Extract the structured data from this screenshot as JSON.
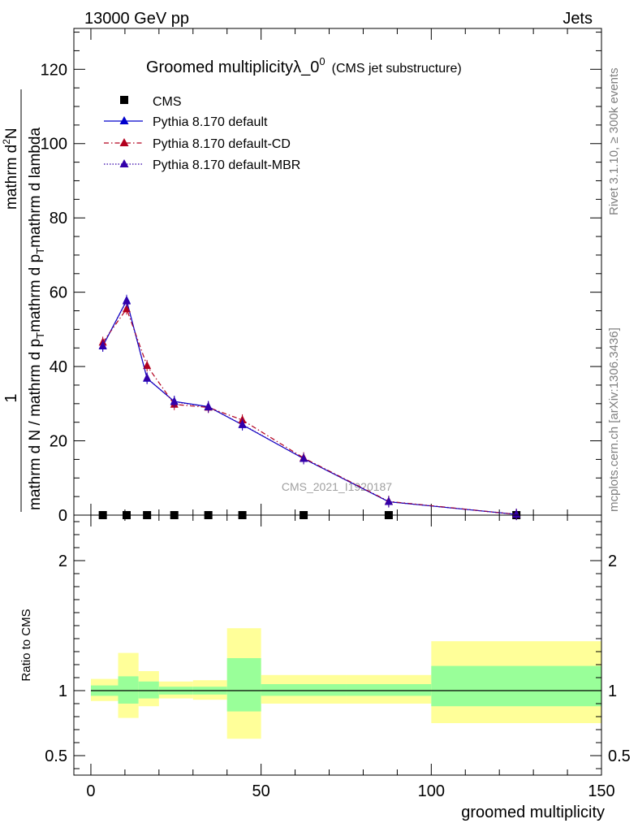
{
  "header": {
    "left": "13000 GeV pp",
    "right": "Jets"
  },
  "side_text": {
    "rivet": "Rivet 3.1.10, ≥ 300k events",
    "mcplots": "mcplots.cern.ch [arXiv:1306.3436]"
  },
  "watermark": "CMS_2021_I1920187",
  "chart_data": [
    {
      "type": "line",
      "title": "Groomed multiplicityλ_0⁰",
      "subtitle": "(CMS jet substructure)",
      "title_main": "Groomed multiplicityλ_0",
      "title_sup": "0",
      "ylabel_parts": [
        "1",
        "mathrm d N / mathrm d p_T mathrm d p_T mathrm d lambda",
        "mathrm d²N"
      ],
      "ylabel_1": "1",
      "ylabel_2": "mathrm d N / mathrm d p",
      "ylabel_2b": "mathrm d p",
      "ylabel_2c": "T",
      "ylabel_2d": "mathrm d p",
      "ylabel_2e": "T",
      "ylabel_2f": "mathrm d lambda",
      "ylabel_num": "mathrm d",
      "ylabel_num_sup": "2",
      "ylabel_num_end": "N",
      "xlim": [
        -5,
        150
      ],
      "ylim": [
        0,
        131
      ],
      "y_ticks": [
        0,
        20,
        40,
        60,
        80,
        100,
        120
      ],
      "y_tick_labels": [
        "0",
        "20",
        "40",
        "60",
        "80",
        "100",
        "120"
      ],
      "legend": {
        "position": "top-left",
        "entries": [
          "CMS",
          "Pythia 8.170 default",
          "Pythia 8.170 default-CD",
          "Pythia 8.170 default-MBR"
        ]
      },
      "x": [
        3.5,
        10.5,
        16.5,
        24.5,
        34.5,
        44.5,
        62.5,
        87.5,
        125
      ],
      "series": [
        {
          "name": "CMS",
          "color": "#000000",
          "marker": "square",
          "values": [
            0,
            0,
            0,
            0,
            0,
            0,
            0,
            0,
            0
          ]
        },
        {
          "name": "Pythia 8.170 default",
          "color": "#0000cc",
          "style": "solid",
          "marker": "triangle",
          "values": [
            45.5,
            57.8,
            36.8,
            30.6,
            29.2,
            24.3,
            15.2,
            3.6,
            0.2
          ]
        },
        {
          "name": "Pythia 8.170 default-CD",
          "color": "#b2001e",
          "style": "dashdot",
          "marker": "triangle",
          "values": [
            46.5,
            55.5,
            40.2,
            29.8,
            29.0,
            25.6,
            15.4,
            3.7,
            0.2
          ]
        },
        {
          "name": "Pythia 8.170 default-MBR",
          "color": "#3300aa",
          "style": "dotted",
          "marker": "triangle",
          "values": [
            45.6,
            57.6,
            36.9,
            30.5,
            29.1,
            24.4,
            15.2,
            3.6,
            0.2
          ]
        }
      ]
    },
    {
      "type": "area",
      "ylabel": "Ratio to CMS",
      "xlabel": "groomed multiplicity",
      "xlim": [
        -5,
        150
      ],
      "ylim": [
        0.35,
        2.35
      ],
      "x_ticks": [
        0,
        50,
        100,
        150
      ],
      "x_tick_labels": [
        "0",
        "50",
        "100",
        "150"
      ],
      "y_ticks": [
        0.5,
        1,
        2
      ],
      "y_tick_labels": [
        "0.5",
        "1",
        "2"
      ],
      "reference_line": 1,
      "bins": [
        [
          0,
          8
        ],
        [
          8,
          14
        ],
        [
          14,
          20
        ],
        [
          20,
          30
        ],
        [
          30,
          40
        ],
        [
          40,
          50
        ],
        [
          50,
          75
        ],
        [
          75,
          100
        ],
        [
          100,
          150
        ]
      ],
      "stat_band": [
        [
          0.96,
          1.04
        ],
        [
          0.9,
          1.11
        ],
        [
          0.94,
          1.07
        ],
        [
          0.97,
          1.03
        ],
        [
          0.97,
          1.03
        ],
        [
          0.84,
          1.25
        ],
        [
          0.96,
          1.05
        ],
        [
          0.96,
          1.05
        ],
        [
          0.88,
          1.19
        ]
      ],
      "total_band": [
        [
          0.92,
          1.09
        ],
        [
          0.79,
          1.29
        ],
        [
          0.88,
          1.15
        ],
        [
          0.94,
          1.07
        ],
        [
          0.93,
          1.08
        ],
        [
          0.63,
          1.48
        ],
        [
          0.9,
          1.12
        ],
        [
          0.9,
          1.12
        ],
        [
          0.75,
          1.38
        ]
      ],
      "stat_color": "#99ff99",
      "total_color": "#ffff99"
    }
  ]
}
